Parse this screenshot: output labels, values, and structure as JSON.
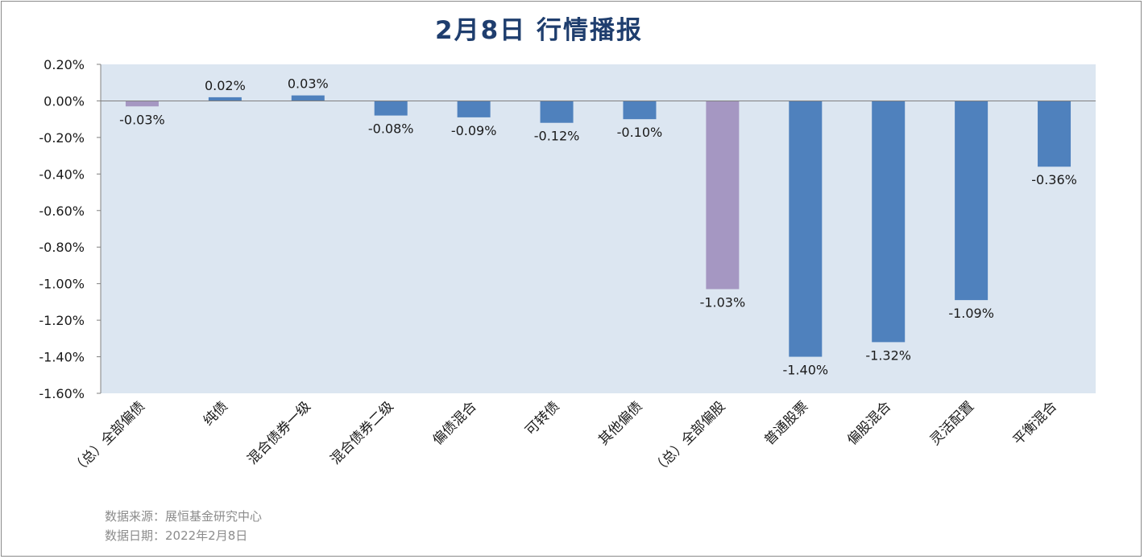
{
  "title": "2月8日  行情播报",
  "chart_data": {
    "type": "bar",
    "categories": [
      "（总）全部偏债",
      "纯债",
      "混合债券一级",
      "混合债券二级",
      "偏债混合",
      "可转债",
      "其他偏债",
      "（总）全部偏股",
      "普通股票",
      "偏股混合",
      "灵活配置",
      "平衡混合"
    ],
    "values": [
      -0.03,
      0.02,
      0.03,
      -0.08,
      -0.09,
      -0.12,
      -0.1,
      -1.03,
      -1.4,
      -1.32,
      -1.09,
      -0.36
    ],
    "labels": [
      "-0.03%",
      "0.02%",
      "0.03%",
      "-0.08%",
      "-0.09%",
      "-0.12%",
      "-0.10%",
      "-1.03%",
      "-1.40%",
      "-1.32%",
      "-1.09%",
      "-0.36%"
    ],
    "highlight": [
      true,
      false,
      false,
      false,
      false,
      false,
      false,
      true,
      false,
      false,
      false,
      false
    ],
    "ylim": [
      -1.6,
      0.2
    ],
    "yticks": [
      "0.20%",
      "0.00%",
      "-0.20%",
      "-0.40%",
      "-0.60%",
      "-0.80%",
      "-1.00%",
      "-1.20%",
      "-1.40%",
      "-1.60%"
    ],
    "ytick_values": [
      0.2,
      0.0,
      -0.2,
      -0.4,
      -0.6,
      -0.8,
      -1.0,
      -1.2,
      -1.4,
      -1.6
    ],
    "colors": {
      "bar": "#4f81bd",
      "highlight": "#a597c2",
      "plot_bg": "#dce6f1",
      "zero_line": "#7f7f7f",
      "axis": "#808080"
    },
    "xlabel": "",
    "ylabel": ""
  },
  "footer": {
    "source": "数据来源：展恒基金研究中心",
    "date": "数据日期：2022年2月8日"
  }
}
